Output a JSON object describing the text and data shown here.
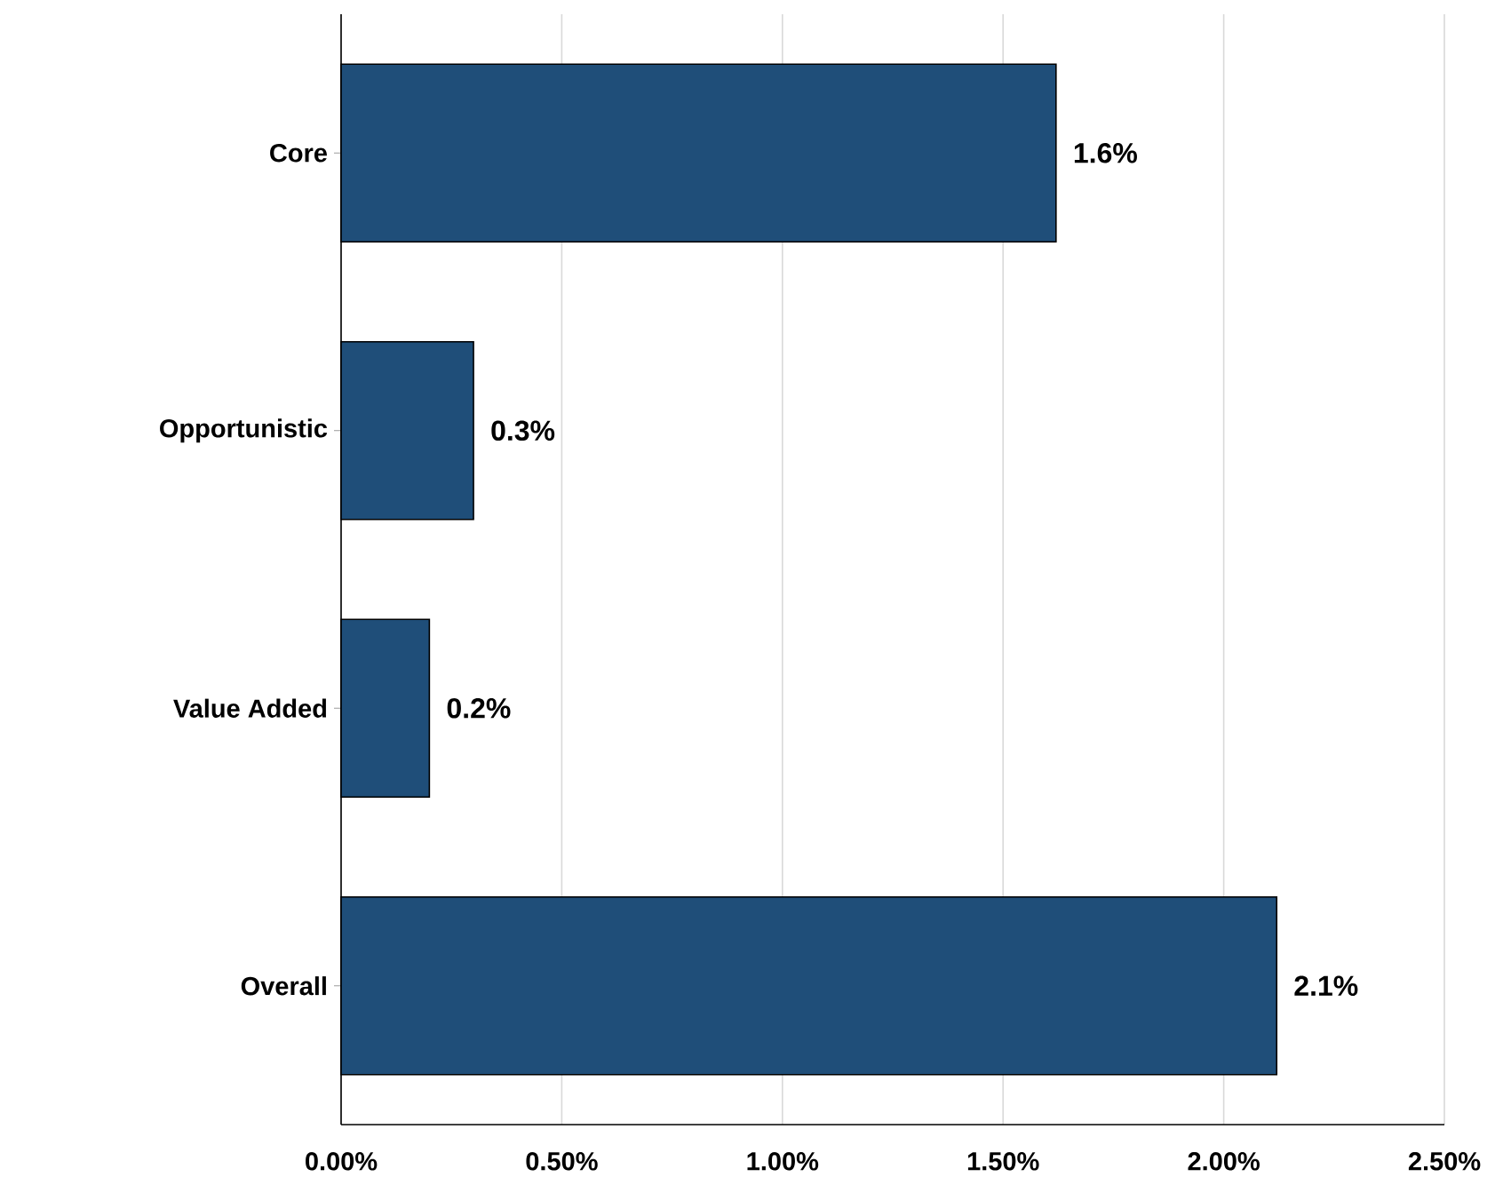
{
  "chart_data": {
    "type": "bar",
    "orientation": "horizontal",
    "categories": [
      "Core",
      "Opportunistic",
      "Value Added",
      "Overall"
    ],
    "values": [
      1.62,
      0.3,
      0.2,
      2.12
    ],
    "value_labels": [
      "1.6%",
      "0.3%",
      "0.2%",
      "2.1%"
    ],
    "color": "#1f4e79",
    "xlim": [
      0,
      2.5
    ],
    "xticks": [
      {
        "value": 0,
        "label": "0.00%"
      },
      {
        "value": 0.5,
        "label": "0.50%"
      },
      {
        "value": 1,
        "label": "1.00%"
      },
      {
        "value": 1.5,
        "label": "1.50%"
      },
      {
        "value": 2,
        "label": "2.00%"
      },
      {
        "value": 2.5,
        "label": "2.50%"
      }
    ],
    "grid": "x"
  }
}
